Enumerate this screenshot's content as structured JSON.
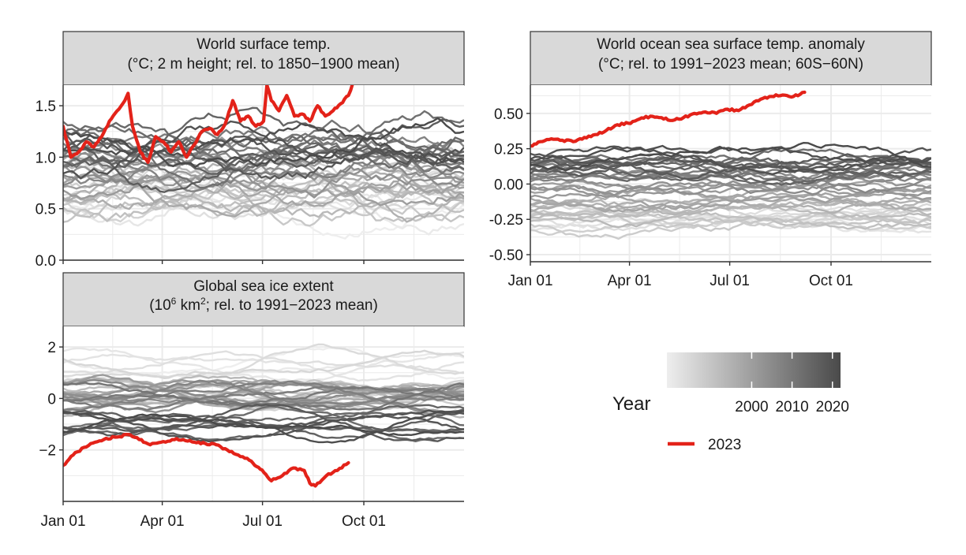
{
  "chart_data": [
    {
      "id": "surface",
      "type": "line",
      "title_lines": [
        "World surface temp.",
        "(°C; 2 m height; rel. to 1850−1900 mean)"
      ],
      "ylim": [
        0,
        1.7
      ],
      "yticks": [
        0,
        0.5,
        1,
        1.5
      ],
      "ytick_labels": [
        "0.0",
        "0.5",
        "1.0",
        "1.5"
      ],
      "xticks": [
        1,
        91,
        182,
        274
      ],
      "xtick_labels": [],
      "background_years": {
        "from": 1979,
        "to": 2022,
        "base": 0.5,
        "trend": 0.016,
        "amp": 0.17,
        "wiggle": 0.11,
        "noise": 0.09
      },
      "highlight": {
        "name": "2023",
        "color": "#e32219",
        "x": [
          1,
          8,
          15,
          22,
          29,
          36,
          43,
          50,
          57,
          60,
          64,
          71,
          78,
          85,
          92,
          99,
          106,
          113,
          120,
          127,
          134,
          141,
          148,
          155,
          162,
          169,
          176,
          183,
          186,
          190,
          197,
          204,
          211,
          218,
          225,
          232,
          239,
          246,
          253,
          260,
          264
        ],
        "y": [
          1.3,
          1.0,
          1.05,
          1.15,
          1.1,
          1.2,
          1.35,
          1.45,
          1.55,
          1.62,
          1.3,
          1.05,
          0.95,
          1.2,
          1.15,
          1.05,
          1.15,
          1.0,
          1.12,
          1.25,
          1.28,
          1.22,
          1.32,
          1.55,
          1.35,
          1.4,
          1.3,
          1.35,
          1.7,
          1.55,
          1.45,
          1.6,
          1.4,
          1.42,
          1.35,
          1.5,
          1.4,
          1.45,
          1.52,
          1.6,
          1.72
        ]
      }
    },
    {
      "id": "ocean",
      "type": "line",
      "title_lines": [
        "World ocean sea surface temp. anomaly",
        "(°C; rel. to 1991−2023 mean; 60S−60N)"
      ],
      "ylim": [
        -0.55,
        0.7
      ],
      "yticks": [
        -0.5,
        -0.25,
        0,
        0.25,
        0.5
      ],
      "ytick_labels": [
        "-0.50",
        "-0.25",
        "0.00",
        "0.25",
        "0.50"
      ],
      "xticks": [
        1,
        91,
        182,
        274
      ],
      "xtick_labels": [
        "Jan 01",
        "Apr 01",
        "Jul 01",
        "Oct 01"
      ],
      "background_years": {
        "from": 1981,
        "to": 2022,
        "base": -0.32,
        "trend": 0.0135,
        "amp": 0.05,
        "wiggle": 0.06,
        "noise": 0.035
      },
      "highlight": {
        "name": "2023",
        "color": "#e32219",
        "x": [
          1,
          10,
          20,
          30,
          40,
          50,
          60,
          70,
          80,
          90,
          100,
          110,
          120,
          130,
          140,
          150,
          160,
          170,
          180,
          190,
          200,
          210,
          220,
          230,
          240,
          250
        ],
        "y": [
          0.27,
          0.3,
          0.32,
          0.31,
          0.3,
          0.33,
          0.35,
          0.38,
          0.42,
          0.43,
          0.46,
          0.48,
          0.47,
          0.45,
          0.47,
          0.5,
          0.51,
          0.5,
          0.53,
          0.52,
          0.56,
          0.6,
          0.62,
          0.63,
          0.62,
          0.65
        ]
      }
    },
    {
      "id": "seaice",
      "type": "line",
      "title_lines": [
        "Global sea ice extent",
        "(10",
        "6",
        " km",
        "2",
        "; rel. to 1991−2023 mean)"
      ],
      "ylim": [
        -4,
        2.8
      ],
      "yticks": [
        -2,
        0,
        2
      ],
      "ytick_labels": [
        "−2",
        "0",
        "2"
      ],
      "xticks": [
        1,
        91,
        182,
        274
      ],
      "xtick_labels": [
        "Jan 01",
        "Apr 01",
        "Jul 01",
        "Oct 01"
      ],
      "background_years": {
        "from": 1979,
        "to": 2022,
        "base": 1.0,
        "trend": -0.045,
        "amp": 0.45,
        "wiggle": 0.5,
        "noise": 0.12
      },
      "highlight": {
        "name": "2023",
        "color": "#e32219",
        "x": [
          1,
          10,
          20,
          30,
          40,
          50,
          60,
          70,
          80,
          90,
          100,
          110,
          120,
          130,
          140,
          150,
          160,
          170,
          175,
          180,
          185,
          190,
          200,
          210,
          220,
          225,
          230,
          240,
          250,
          260
        ],
        "y": [
          -2.6,
          -2.2,
          -1.9,
          -1.7,
          -1.55,
          -1.5,
          -1.4,
          -1.6,
          -1.8,
          -1.7,
          -1.6,
          -1.6,
          -1.7,
          -1.75,
          -1.8,
          -2.0,
          -2.2,
          -2.4,
          -2.6,
          -2.75,
          -2.95,
          -3.2,
          -3.0,
          -2.7,
          -2.8,
          -3.3,
          -3.4,
          -3.0,
          -2.8,
          -2.5
        ]
      }
    }
  ],
  "legend": {
    "title": "Year",
    "gradient_labels": [
      "2000",
      "2010",
      "2020"
    ],
    "gradient_years": [
      2000,
      2010,
      2020
    ],
    "gradient_range": [
      1979,
      2022
    ],
    "gradient_colors": [
      "#eeeeee",
      "#4a4a4a"
    ],
    "highlight_label": "2023",
    "highlight_color": "#e32219"
  },
  "style": {
    "strip_fill": "#d9d9d9",
    "grid_color": "#ebebeb",
    "frame_color": "#333333"
  }
}
